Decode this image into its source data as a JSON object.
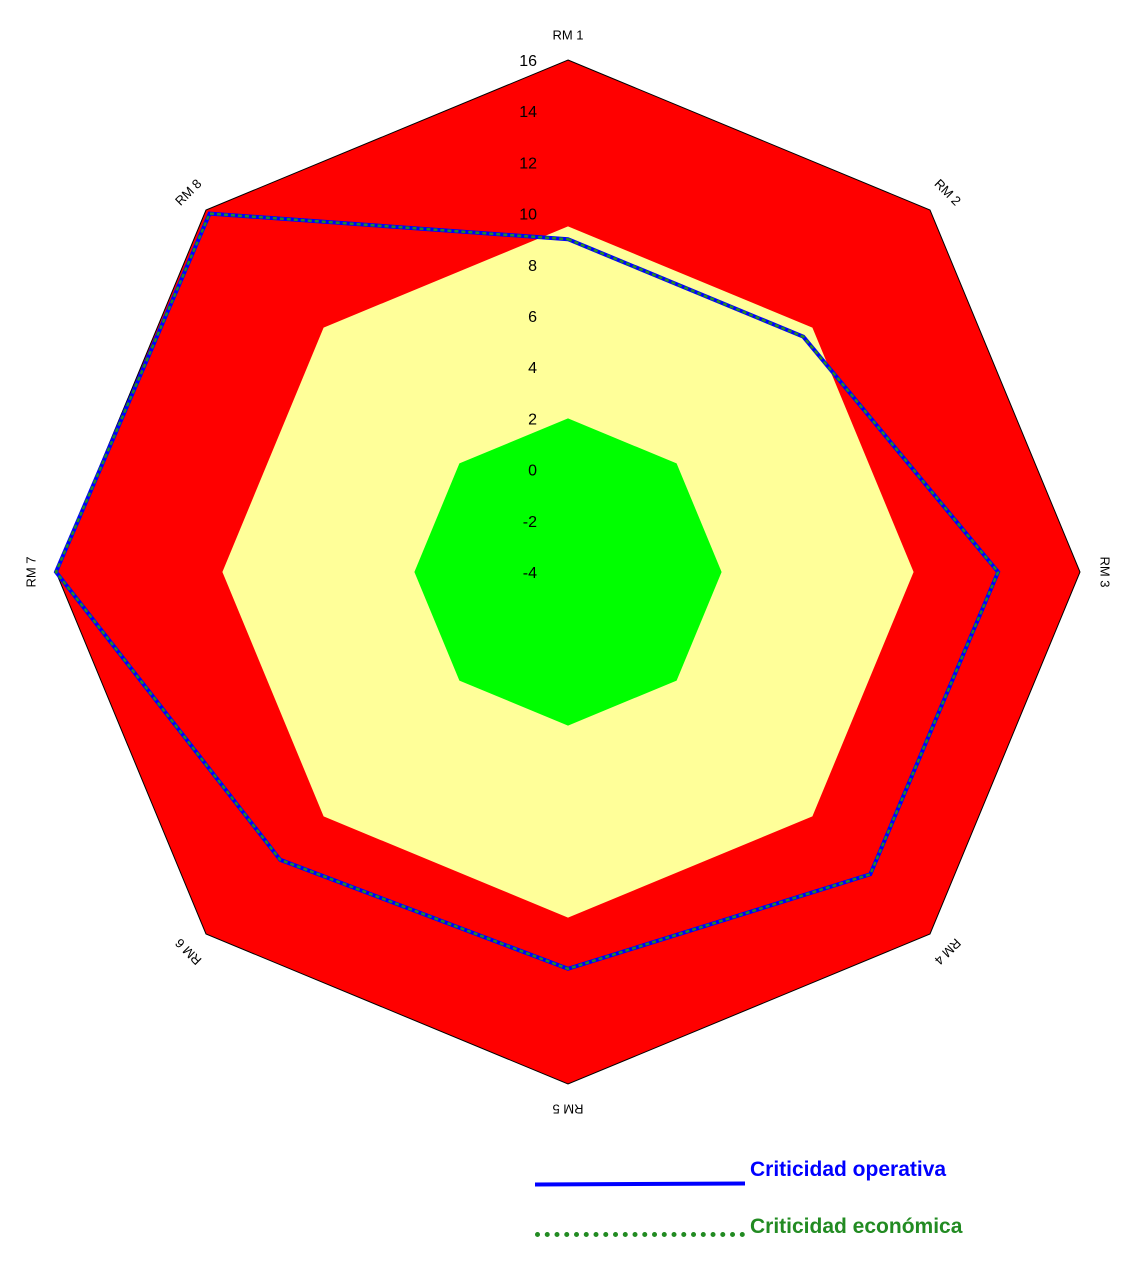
{
  "chart_data": {
    "type": "radar",
    "categories": [
      "RM 1",
      "RM 2",
      "RM 3",
      "RM 4",
      "RM 5",
      "RM 6",
      "RM 7",
      "RM 8"
    ],
    "r_range": [
      -4,
      16
    ],
    "ticks": [
      16,
      14,
      12,
      10,
      8,
      6,
      4,
      2,
      0,
      -2,
      -4
    ],
    "tick_labels": [
      "16",
      "14",
      "12",
      "10",
      "8",
      "6",
      "4",
      "2",
      "0",
      "-2",
      "-4"
    ],
    "zones": [
      {
        "color": "#ff0000",
        "value": 16
      },
      {
        "color": "#ffff99",
        "value": 9.5
      },
      {
        "color": "#00ff00",
        "value": 2
      }
    ],
    "series": [
      {
        "name": "Criticidad operativa",
        "color": "#0000ff",
        "style": "solid",
        "values": [
          9,
          9,
          12.8,
          12.7,
          11.5,
          11.9,
          16,
          15.8
        ]
      },
      {
        "name": "Criticidad económica",
        "color": "#228b22",
        "style": "dashed",
        "values": [
          9,
          9,
          12.8,
          12.7,
          11.5,
          11.9,
          16,
          15.8
        ]
      }
    ],
    "legend_position": "bottom-right",
    "grid": false
  }
}
